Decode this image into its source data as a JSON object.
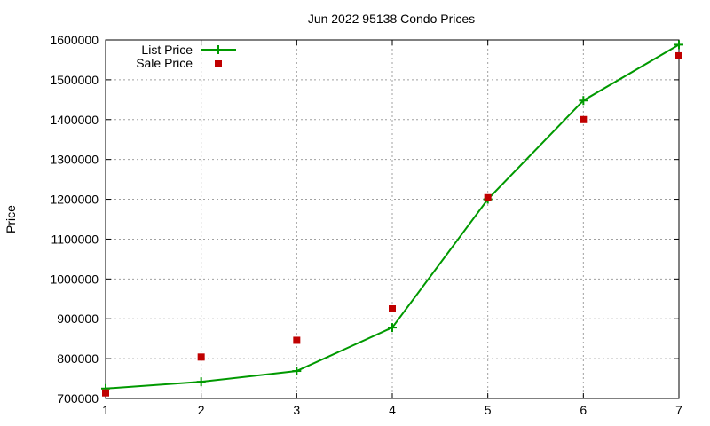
{
  "chart_data": {
    "type": "line",
    "title": "Jun 2022 95138 Condo Prices",
    "xlabel": "",
    "ylabel": "Price",
    "x": [
      1,
      2,
      3,
      4,
      5,
      6,
      7
    ],
    "xlim": [
      1,
      7
    ],
    "ylim": [
      700000,
      1600000
    ],
    "xticks": [
      1,
      2,
      3,
      4,
      5,
      6,
      7
    ],
    "yticks": [
      700000,
      800000,
      900000,
      1000000,
      1100000,
      1200000,
      1300000,
      1400000,
      1500000,
      1600000
    ],
    "grid": true,
    "legend_position": "top-left",
    "series": [
      {
        "name": "List Price",
        "style": "line-with-plus-markers",
        "color": "#009900",
        "values": [
          725000,
          742000,
          769000,
          878000,
          1200000,
          1448000,
          1588000
        ]
      },
      {
        "name": "Sale Price",
        "style": "square-markers",
        "color": "#c00000",
        "values": [
          714000,
          804000,
          846000,
          925000,
          1204000,
          1400000,
          1560000
        ]
      }
    ]
  }
}
